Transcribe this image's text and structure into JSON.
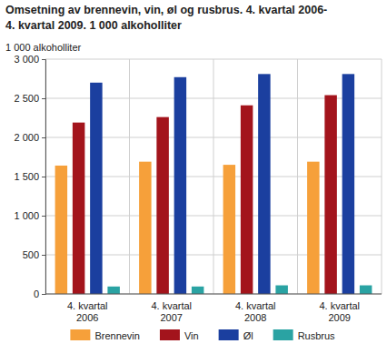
{
  "chart_data": {
    "type": "bar",
    "title": [
      "Omsetning av brennevin, vin, øl og rusbrus. 4. kvartal 2006-",
      "4. kvartal 2009. 1 000 alkoholliter"
    ],
    "y_label": "1 000 alkoholliter",
    "categories": [
      "4. kvartal 2006",
      "4. kvartal 2007",
      "4. kvartal 2008",
      "4. kvartal 2009"
    ],
    "series": [
      {
        "name": "Brennevin",
        "color": "#f6a03a",
        "values": [
          1640,
          1690,
          1650,
          1690
        ]
      },
      {
        "name": "Vin",
        "color": "#a3141c",
        "values": [
          2190,
          2260,
          2410,
          2540
        ]
      },
      {
        "name": "Øl",
        "color": "#1b3f9f",
        "values": [
          2700,
          2770,
          2810,
          2810
        ]
      },
      {
        "name": "Rusbrus",
        "color": "#2aa3a3",
        "values": [
          95,
          95,
          110,
          110
        ]
      }
    ],
    "ylim": [
      0,
      3000
    ],
    "yticks": [
      0,
      500,
      {
        "value": 1000,
        "label": "1 000"
      },
      {
        "value": 1500,
        "label": "1 500"
      },
      {
        "value": 2000,
        "label": "2 000"
      },
      {
        "value": 2500,
        "label": "2 500"
      },
      {
        "value": 3000,
        "label": "3 000"
      }
    ],
    "grid": true,
    "legend": "bottom"
  }
}
